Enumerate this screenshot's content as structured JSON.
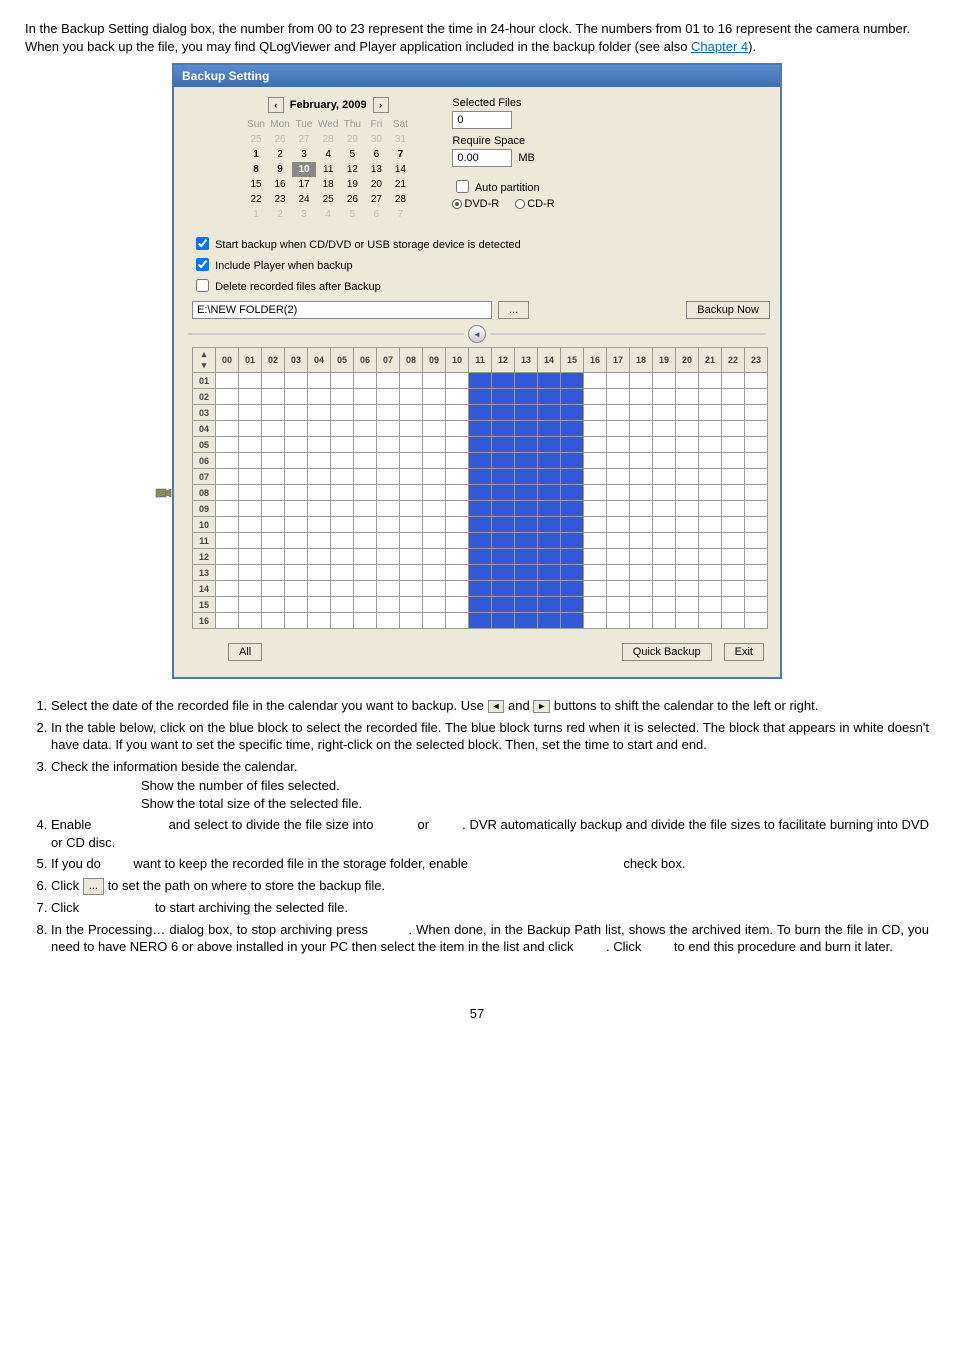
{
  "intro": "In the Backup Setting dialog box, the number from 00 to 23 represent the time in 24-hour clock. The numbers from 01 to 16 represent the camera number. When you back up the file, you may find QLogViewer and Player application included in the backup folder (see also ",
  "intro_link": "Chapter 4",
  "intro_end": ").",
  "dialog": {
    "title": "Backup Setting",
    "cal_prev": "‹",
    "cal_next": "›",
    "cal_title": "February, 2009",
    "day_headers": [
      "Sun",
      "Mon",
      "Tue",
      "Wed",
      "Thu",
      "Fri",
      "Sat"
    ],
    "weeks": [
      [
        {
          "v": "25",
          "d": true
        },
        {
          "v": "26",
          "d": true
        },
        {
          "v": "27",
          "d": true
        },
        {
          "v": "28",
          "d": true
        },
        {
          "v": "29",
          "d": true
        },
        {
          "v": "30",
          "d": true
        },
        {
          "v": "31",
          "d": true
        }
      ],
      [
        {
          "v": "1",
          "b": true
        },
        {
          "v": "2"
        },
        {
          "v": "3"
        },
        {
          "v": "4"
        },
        {
          "v": "5"
        },
        {
          "v": "6"
        },
        {
          "v": "7",
          "b": true
        }
      ],
      [
        {
          "v": "8",
          "b": true
        },
        {
          "v": "9",
          "b": true
        },
        {
          "v": "10",
          "sel": true,
          "b": true
        },
        {
          "v": "11"
        },
        {
          "v": "12"
        },
        {
          "v": "13"
        },
        {
          "v": "14"
        }
      ],
      [
        {
          "v": "15"
        },
        {
          "v": "16"
        },
        {
          "v": "17"
        },
        {
          "v": "18"
        },
        {
          "v": "19"
        },
        {
          "v": "20"
        },
        {
          "v": "21"
        }
      ],
      [
        {
          "v": "22"
        },
        {
          "v": "23"
        },
        {
          "v": "24"
        },
        {
          "v": "25"
        },
        {
          "v": "26"
        },
        {
          "v": "27"
        },
        {
          "v": "28"
        }
      ],
      [
        {
          "v": "1",
          "d": true
        },
        {
          "v": "2",
          "d": true
        },
        {
          "v": "3",
          "d": true
        },
        {
          "v": "4",
          "d": true
        },
        {
          "v": "5",
          "d": true
        },
        {
          "v": "6",
          "d": true
        },
        {
          "v": "7",
          "d": true
        }
      ]
    ],
    "selected_files_label": "Selected Files",
    "selected_files_value": "0",
    "require_space_label": "Require Space",
    "require_space_value": "0.00",
    "mb_label": "MB",
    "auto_partition_label": "Auto partition",
    "dvd_r_label": "DVD-R",
    "cd_r_label": "CD-R",
    "check_start": "Start backup when CD/DVD or USB storage device is detected",
    "check_include": "Include Player when backup",
    "check_delete": "Delete recorded files after Backup",
    "path_value": "E:\\NEW FOLDER(2)",
    "dots": "...",
    "backup_now": "Backup Now",
    "hour_headers": [
      "00",
      "01",
      "02",
      "03",
      "04",
      "05",
      "06",
      "07",
      "08",
      "09",
      "10",
      "11",
      "12",
      "13",
      "14",
      "15",
      "16",
      "17",
      "18",
      "19",
      "20",
      "21",
      "22",
      "23"
    ],
    "camera_rows": [
      "01",
      "02",
      "03",
      "04",
      "05",
      "06",
      "07",
      "08",
      "09",
      "10",
      "11",
      "12",
      "13",
      "14",
      "15",
      "16"
    ],
    "blue_cols_start": 11,
    "blue_cols_end": 15,
    "all_btn": "All",
    "quick_backup": "Quick Backup",
    "exit": "Exit"
  },
  "steps": {
    "s1a": "Select the date of the recorded file in the calendar you want to backup. Use ",
    "s1_btn1": "◄",
    "s1b": " and ",
    "s1_btn2": "►",
    "s1c": " buttons to shift the calendar to the left or right.",
    "s2": "In the table below, click on the blue block to select the recorded file. The blue block turns red when it is selected. The block that appears in white doesn't have data. If you want to set the specific time, right-click on the selected block. Then, set the time to start and end.",
    "s3": "Check the information beside the calendar.",
    "s3_sub1": "Show the number of files selected.",
    "s3_sub2": "Show the total size of the selected file.",
    "s4a": "Enable",
    "s4b": "and select to divide the file size into",
    "s4c": "or",
    "s4d": ". DVR automatically backup and divide the file sizes to facilitate burning into DVD or CD disc.",
    "s5a": "If you do",
    "s5b": "want to keep the recorded file in the storage folder, enable",
    "s5c": "check box.",
    "s6a": "Click ",
    "s6_dots": "...",
    "s6b": " to set the path on where to store the backup file.",
    "s7a": "Click",
    "s7b": "to start archiving the selected file.",
    "s8a": "In the Processing… dialog box, to stop archiving press",
    "s8b": ". When done, in the Backup Path list, shows the archived item. To burn the file in CD, you need to have NERO 6 or above installed in your PC then select the item in the list and click",
    "s8c": ". Click",
    "s8d": "to end this procedure and burn it later."
  },
  "page_num": "57"
}
